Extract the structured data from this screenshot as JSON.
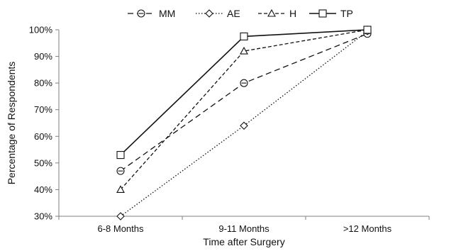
{
  "chart_data": {
    "type": "line",
    "categories": [
      "6-8 Months",
      "9-11 Months",
      ">12 Months"
    ],
    "xlabel": "Time after Surgery",
    "ylabel": "Percentage of Respondents",
    "ylim": [
      30,
      100
    ],
    "yticks": [
      30,
      40,
      50,
      60,
      70,
      80,
      90,
      100
    ],
    "ytick_labels": [
      "30%",
      "40%",
      "50%",
      "60%",
      "70%",
      "80%",
      "90%",
      "100%"
    ],
    "grid": false,
    "legend_position": "top",
    "series": [
      {
        "name": "MM",
        "values": [
          47,
          80,
          98.5
        ],
        "marker": "circle",
        "dash": "dashed"
      },
      {
        "name": "AE",
        "values": [
          30,
          64,
          99.5
        ],
        "marker": "diamond",
        "dash": "dotted"
      },
      {
        "name": "H",
        "values": [
          40,
          92,
          100
        ],
        "marker": "triangle",
        "dash": "dash-short"
      },
      {
        "name": "TP",
        "values": [
          53,
          97.5,
          100
        ],
        "marker": "square",
        "dash": "solid"
      }
    ]
  }
}
